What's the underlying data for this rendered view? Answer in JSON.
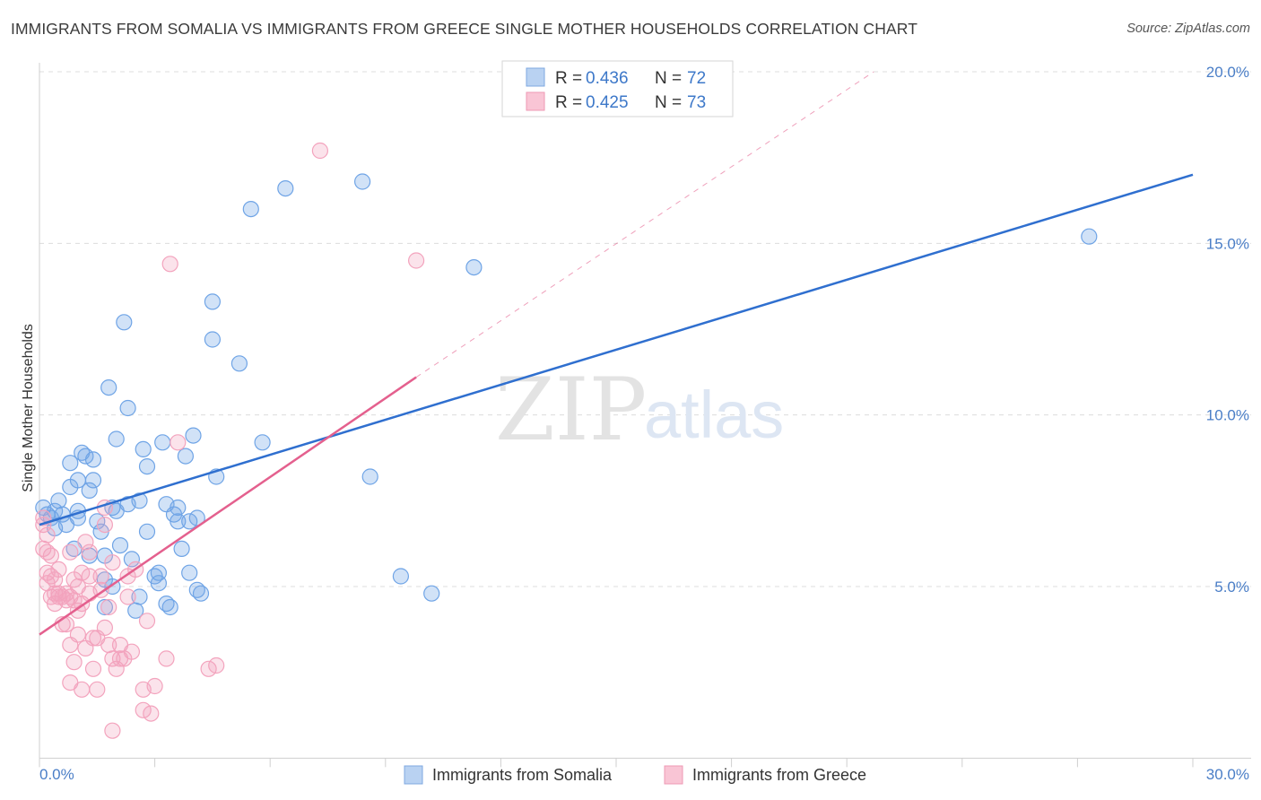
{
  "title": "IMMIGRANTS FROM SOMALIA VS IMMIGRANTS FROM GREECE SINGLE MOTHER HOUSEHOLDS CORRELATION CHART",
  "source": "Source: ZipAtlas.com",
  "watermark": {
    "zip": "ZIP",
    "atlas": "atlas"
  },
  "chart_data": {
    "type": "scatter",
    "title": "IMMIGRANTS FROM SOMALIA VS IMMIGRANTS FROM GREECE SINGLE MOTHER HOUSEHOLDS CORRELATION CHART",
    "xlabel": "",
    "ylabel": "Single Mother Households",
    "xlim": [
      0,
      30
    ],
    "ylim": [
      0,
      20.5
    ],
    "x_tick_labels": [
      "0.0%",
      "30.0%"
    ],
    "y_ticks": [
      5,
      10,
      15,
      20
    ],
    "y_tick_labels": [
      "5.0%",
      "10.0%",
      "15.0%",
      "20.0%"
    ],
    "grid": true,
    "legend_position": "bottom-center",
    "stats": [
      {
        "r_label": "R =",
        "r_value": "0.436",
        "n_label": "N =",
        "n_value": "72"
      },
      {
        "r_label": "R =",
        "r_value": "0.425",
        "n_label": "N =",
        "n_value": "73"
      }
    ],
    "series": [
      {
        "name": "Immigrants from Somalia",
        "color": "#6fa4e6",
        "line_color": "#2f6fcf",
        "trend": {
          "x0": 0.0,
          "y0": 6.8,
          "x1": 30.0,
          "y1": 17.0
        },
        "points": [
          [
            0.1,
            7.3
          ],
          [
            0.2,
            7.1
          ],
          [
            0.3,
            7.0
          ],
          [
            0.4,
            7.2
          ],
          [
            0.4,
            6.7
          ],
          [
            0.5,
            7.5
          ],
          [
            0.6,
            7.1
          ],
          [
            0.7,
            6.8
          ],
          [
            0.8,
            7.9
          ],
          [
            0.8,
            8.6
          ],
          [
            0.9,
            6.1
          ],
          [
            1.0,
            7.2
          ],
          [
            1.0,
            7.0
          ],
          [
            1.0,
            8.1
          ],
          [
            1.1,
            8.9
          ],
          [
            1.2,
            8.8
          ],
          [
            1.3,
            7.8
          ],
          [
            1.3,
            5.9
          ],
          [
            1.4,
            8.7
          ],
          [
            1.4,
            8.1
          ],
          [
            1.5,
            6.9
          ],
          [
            1.6,
            6.6
          ],
          [
            1.7,
            5.9
          ],
          [
            1.7,
            5.2
          ],
          [
            1.7,
            4.4
          ],
          [
            1.8,
            10.8
          ],
          [
            1.9,
            7.3
          ],
          [
            1.9,
            5.0
          ],
          [
            2.0,
            9.3
          ],
          [
            2.0,
            7.2
          ],
          [
            2.1,
            6.2
          ],
          [
            2.2,
            12.7
          ],
          [
            2.3,
            7.4
          ],
          [
            2.3,
            10.2
          ],
          [
            2.4,
            5.8
          ],
          [
            2.5,
            4.3
          ],
          [
            2.6,
            4.7
          ],
          [
            2.6,
            7.5
          ],
          [
            2.7,
            9.0
          ],
          [
            2.8,
            8.5
          ],
          [
            2.8,
            6.6
          ],
          [
            3.0,
            5.3
          ],
          [
            3.1,
            5.1
          ],
          [
            3.1,
            5.4
          ],
          [
            3.2,
            9.2
          ],
          [
            3.3,
            4.5
          ],
          [
            3.3,
            7.4
          ],
          [
            3.4,
            4.4
          ],
          [
            3.5,
            7.1
          ],
          [
            3.6,
            7.3
          ],
          [
            3.6,
            6.9
          ],
          [
            3.7,
            6.1
          ],
          [
            3.8,
            8.8
          ],
          [
            3.9,
            5.4
          ],
          [
            3.9,
            6.9
          ],
          [
            4.0,
            9.4
          ],
          [
            4.1,
            7.0
          ],
          [
            4.1,
            4.9
          ],
          [
            4.2,
            4.8
          ],
          [
            4.5,
            13.3
          ],
          [
            4.5,
            12.2
          ],
          [
            4.6,
            8.2
          ],
          [
            5.2,
            11.5
          ],
          [
            5.5,
            16.0
          ],
          [
            5.8,
            9.2
          ],
          [
            6.4,
            16.6
          ],
          [
            8.4,
            16.8
          ],
          [
            8.6,
            8.2
          ],
          [
            9.4,
            5.3
          ],
          [
            10.2,
            4.8
          ],
          [
            11.3,
            14.3
          ],
          [
            27.3,
            15.2
          ]
        ]
      },
      {
        "name": "Immigrants from Greece",
        "color": "#f3a3bd",
        "line_color": "#e4608e",
        "trend": {
          "x0": 0.0,
          "y0": 3.6,
          "x1": 9.8,
          "y1": 11.1
        },
        "trend_extension": {
          "x0": 9.8,
          "y0": 11.1,
          "x1": 21.7,
          "y1": 20.0
        },
        "points": [
          [
            0.1,
            7.0
          ],
          [
            0.1,
            6.8
          ],
          [
            0.1,
            6.1
          ],
          [
            0.2,
            6.0
          ],
          [
            0.2,
            5.4
          ],
          [
            0.2,
            5.1
          ],
          [
            0.2,
            6.5
          ],
          [
            0.3,
            4.7
          ],
          [
            0.3,
            5.3
          ],
          [
            0.3,
            5.9
          ],
          [
            0.4,
            4.8
          ],
          [
            0.4,
            5.2
          ],
          [
            0.4,
            4.5
          ],
          [
            0.5,
            4.7
          ],
          [
            0.5,
            5.5
          ],
          [
            0.5,
            4.8
          ],
          [
            0.6,
            4.7
          ],
          [
            0.6,
            3.9
          ],
          [
            0.7,
            4.8
          ],
          [
            0.7,
            4.6
          ],
          [
            0.7,
            3.9
          ],
          [
            0.8,
            4.7
          ],
          [
            0.8,
            6.0
          ],
          [
            0.8,
            3.3
          ],
          [
            0.8,
            2.2
          ],
          [
            0.9,
            4.6
          ],
          [
            0.9,
            2.8
          ],
          [
            0.9,
            5.2
          ],
          [
            1.0,
            3.6
          ],
          [
            1.0,
            5.0
          ],
          [
            1.0,
            4.3
          ],
          [
            1.1,
            2.0
          ],
          [
            1.1,
            5.4
          ],
          [
            1.1,
            4.5
          ],
          [
            1.2,
            3.2
          ],
          [
            1.2,
            6.3
          ],
          [
            1.3,
            6.0
          ],
          [
            1.3,
            5.3
          ],
          [
            1.3,
            4.8
          ],
          [
            1.4,
            3.5
          ],
          [
            1.4,
            2.6
          ],
          [
            1.5,
            3.5
          ],
          [
            1.5,
            2.0
          ],
          [
            1.6,
            4.9
          ],
          [
            1.6,
            5.3
          ],
          [
            1.7,
            7.3
          ],
          [
            1.7,
            6.8
          ],
          [
            1.7,
            3.8
          ],
          [
            1.8,
            3.3
          ],
          [
            1.8,
            4.4
          ],
          [
            1.9,
            2.9
          ],
          [
            1.9,
            0.8
          ],
          [
            1.9,
            5.7
          ],
          [
            2.0,
            2.6
          ],
          [
            2.1,
            2.9
          ],
          [
            2.1,
            3.3
          ],
          [
            2.2,
            2.9
          ],
          [
            2.3,
            5.3
          ],
          [
            2.3,
            4.7
          ],
          [
            2.4,
            3.1
          ],
          [
            2.5,
            5.5
          ],
          [
            2.7,
            2.0
          ],
          [
            2.7,
            1.4
          ],
          [
            2.8,
            4.0
          ],
          [
            2.9,
            1.3
          ],
          [
            3.0,
            2.1
          ],
          [
            3.3,
            2.9
          ],
          [
            3.6,
            9.2
          ],
          [
            4.4,
            2.6
          ],
          [
            4.6,
            2.7
          ],
          [
            3.4,
            14.4
          ],
          [
            7.3,
            17.7
          ],
          [
            9.8,
            14.5
          ]
        ]
      }
    ]
  }
}
